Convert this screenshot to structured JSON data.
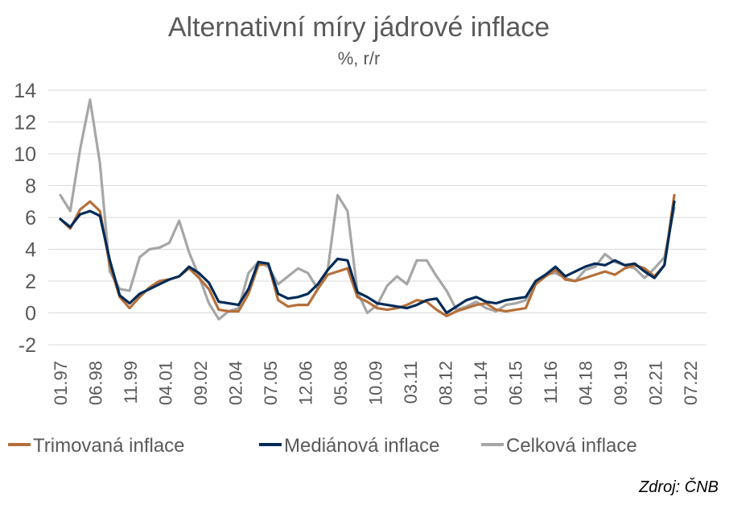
{
  "chart_data": {
    "type": "line",
    "title": "Alternativní míry jádrové inflace",
    "subtitle": "%, r/r",
    "ylim": [
      -2,
      14
    ],
    "yticks": [
      -2,
      0,
      2,
      4,
      6,
      8,
      10,
      12,
      14
    ],
    "x_tick_labels": [
      "01.97",
      "06.98",
      "11.99",
      "04.01",
      "09.02",
      "02.04",
      "07.05",
      "12.06",
      "05.08",
      "10.09",
      "03.11",
      "08.12",
      "01.14",
      "06.15",
      "11.16",
      "04.18",
      "09.19",
      "02.21",
      "07.22"
    ],
    "x_start": "01.97",
    "x_step_months": 6,
    "grid": "horizontal",
    "legend_position": "bottom",
    "series": [
      {
        "name": "Trimovaná inflace",
        "color": "#b5703a",
        "values": [
          5.9,
          5.3,
          6.5,
          7.0,
          6.4,
          3.0,
          1.0,
          0.3,
          1.0,
          1.6,
          2.0,
          2.1,
          2.3,
          2.8,
          2.2,
          1.5,
          0.2,
          0.1,
          0.1,
          1.2,
          3.0,
          3.1,
          0.8,
          0.4,
          0.5,
          0.5,
          1.5,
          2.4,
          2.6,
          2.8,
          1.0,
          0.7,
          0.3,
          0.2,
          0.3,
          0.5,
          0.8,
          0.7,
          0.2,
          -0.2,
          0.1,
          0.3,
          0.5,
          0.6,
          0.2,
          0.1,
          0.2,
          0.3,
          1.8,
          2.3,
          2.7,
          2.1,
          2.0,
          2.2,
          2.4,
          2.6,
          2.4,
          2.8,
          3.0,
          2.8,
          2.3,
          3.0,
          7.4
        ]
      },
      {
        "name": "Mediánová inflace",
        "color": "#002b57",
        "values": [
          5.9,
          5.4,
          6.2,
          6.4,
          6.1,
          3.3,
          1.1,
          0.6,
          1.2,
          1.5,
          1.8,
          2.1,
          2.3,
          2.9,
          2.5,
          1.9,
          0.7,
          0.6,
          0.5,
          1.5,
          3.2,
          3.1,
          1.2,
          0.9,
          1.0,
          1.2,
          1.8,
          2.7,
          3.4,
          3.3,
          1.3,
          1.0,
          0.6,
          0.5,
          0.4,
          0.3,
          0.5,
          0.8,
          0.9,
          0.0,
          0.4,
          0.8,
          1.0,
          0.7,
          0.6,
          0.8,
          0.9,
          1.0,
          2.0,
          2.4,
          2.9,
          2.3,
          2.6,
          2.9,
          3.1,
          3.0,
          3.3,
          3.0,
          3.1,
          2.6,
          2.2,
          3.0,
          7.0
        ]
      },
      {
        "name": "Celková inflace",
        "color": "#a6a6a6",
        "values": [
          7.4,
          6.4,
          10.3,
          13.4,
          9.4,
          2.6,
          1.5,
          1.4,
          3.5,
          4.0,
          4.1,
          4.4,
          5.8,
          3.8,
          2.3,
          0.6,
          -0.4,
          0.1,
          0.3,
          2.5,
          3.2,
          2.9,
          1.8,
          2.3,
          2.8,
          2.5,
          1.5,
          2.7,
          7.4,
          6.4,
          1.3,
          0.0,
          0.5,
          1.7,
          2.3,
          1.8,
          3.3,
          3.3,
          2.3,
          1.4,
          0.2,
          0.4,
          0.7,
          0.3,
          0.1,
          0.5,
          0.6,
          0.8,
          1.9,
          2.4,
          2.5,
          2.2,
          2.0,
          2.7,
          2.9,
          3.7,
          3.2,
          3.0,
          2.8,
          2.2,
          2.8,
          3.5,
          6.6
        ]
      }
    ]
  },
  "source": "Zdroj: ČNB"
}
